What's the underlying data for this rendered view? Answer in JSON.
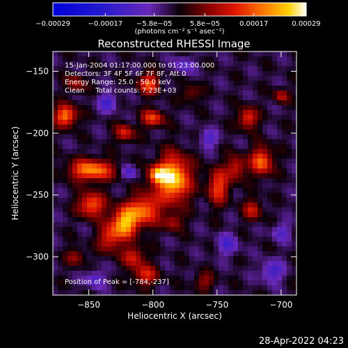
{
  "chart_data": {
    "type": "heatmap",
    "title": "Reconstructed RHESSI Image",
    "xlabel": "Heliocentric X (arcsec)",
    "ylabel": "Heliocentric Y (arcsec)",
    "xlim": [
      -878,
      -688
    ],
    "ylim": [
      -331,
      -134
    ],
    "x_ticks": [
      {
        "value": -850,
        "label": "−850"
      },
      {
        "value": -800,
        "label": "−800"
      },
      {
        "value": -750,
        "label": "−750"
      },
      {
        "value": -700,
        "label": "−700"
      }
    ],
    "y_ticks": [
      {
        "value": -150,
        "label": "−150"
      },
      {
        "value": -200,
        "label": "−200"
      },
      {
        "value": -250,
        "label": "−250"
      },
      {
        "value": -300,
        "label": "−300"
      }
    ],
    "colorbar": {
      "min": -0.00029,
      "max": 0.00029,
      "ticks": [
        {
          "value": -0.00029,
          "label": "−0.00029"
        },
        {
          "value": -0.00017,
          "label": "−0.00017"
        },
        {
          "value": -5.8e-05,
          "label": "−5.8e−05"
        },
        {
          "value": 5.8e-05,
          "label": "5.8e−05"
        },
        {
          "value": 0.00017,
          "label": "0.00017"
        },
        {
          "value": 0.00029,
          "label": "0.00029"
        }
      ],
      "units_label": "(photons cm⁻² s⁻¹ asec⁻²)"
    },
    "annotations": [
      "15-Jan-2004 01:17:00.000 to 01:23:00.000",
      "Detectors: 3F 4F 5F 6F 7F 8F, Att 0",
      "Energy Range: 25.0 - 50.0 keV",
      "Clean     Total counts: 7.23E+03",
      "Position of Peak = [-784,-237]"
    ],
    "peak": {
      "x": -784,
      "y": -237
    },
    "sources": [
      {
        "x": -784,
        "y": -237,
        "sx": 9,
        "sy": 13,
        "amp": 0.00029
      },
      {
        "x": -806,
        "y": -262,
        "sx": 8,
        "sy": 9,
        "amp": 0.0002
      },
      {
        "x": -822,
        "y": -272,
        "sx": 7,
        "sy": 9,
        "amp": 0.00026
      },
      {
        "x": -848,
        "y": -258,
        "sx": 7,
        "sy": 7,
        "amp": 0.0002
      },
      {
        "x": -848,
        "y": -230,
        "sx": 12,
        "sy": 6,
        "amp": 0.00023
      },
      {
        "x": -834,
        "y": -285,
        "sx": 6,
        "sy": 8,
        "amp": 0.00015
      },
      {
        "x": -815,
        "y": -300,
        "sx": 6,
        "sy": 6,
        "amp": 0.00014
      },
      {
        "x": -868,
        "y": -186,
        "sx": 6,
        "sy": 6,
        "amp": 0.00022
      },
      {
        "x": -822,
        "y": -200,
        "sx": 5,
        "sy": 5,
        "amp": 0.00015
      },
      {
        "x": -800,
        "y": -188,
        "sx": 6,
        "sy": 5,
        "amp": 0.00017
      },
      {
        "x": -803,
        "y": -160,
        "sx": 6,
        "sy": 6,
        "amp": 0.00017
      },
      {
        "x": -806,
        "y": -315,
        "sx": 7,
        "sy": 6,
        "amp": 0.00014
      },
      {
        "x": -749,
        "y": -243,
        "sx": 6,
        "sy": 10,
        "amp": 0.00017
      },
      {
        "x": -735,
        "y": -228,
        "sx": 5,
        "sy": 7,
        "amp": 0.00014
      },
      {
        "x": -726,
        "y": -188,
        "sx": 5,
        "sy": 6,
        "amp": 0.00017
      },
      {
        "x": -715,
        "y": -223,
        "sx": 6,
        "sy": 8,
        "amp": 0.0002
      },
      {
        "x": -722,
        "y": -262,
        "sx": 5,
        "sy": 6,
        "amp": 0.00013
      },
      {
        "x": -797,
        "y": -234,
        "sx": 5,
        "sy": 5,
        "amp": 0.0002
      },
      {
        "x": -784,
        "y": -272,
        "sx": 5,
        "sy": 5,
        "amp": 0.00011
      },
      {
        "x": -860,
        "y": -160,
        "sx": 5,
        "sy": 5,
        "amp": 0.00011
      },
      {
        "x": -770,
        "y": -168,
        "sx": 5,
        "sy": 5,
        "amp": 9e-05
      },
      {
        "x": -860,
        "y": -300,
        "sx": 5,
        "sy": 5,
        "amp": 0.0001
      },
      {
        "x": -700,
        "y": -170,
        "sx": 4,
        "sy": 4,
        "amp": 0.00012
      },
      {
        "x": -760,
        "y": -320,
        "sx": 6,
        "sy": 5,
        "amp": 9e-05
      }
    ],
    "holes": [
      {
        "x": -835,
        "y": -175,
        "sx": 5,
        "sy": 5,
        "amp": 0.00012
      },
      {
        "x": -818,
        "y": -232,
        "sx": 4,
        "sy": 4,
        "amp": 0.00011
      },
      {
        "x": -757,
        "y": -205,
        "sx": 5,
        "sy": 5,
        "amp": 0.0001
      },
      {
        "x": -707,
        "y": -312,
        "sx": 6,
        "sy": 6,
        "amp": 0.00012
      },
      {
        "x": -845,
        "y": -318,
        "sx": 5,
        "sy": 5,
        "amp": 0.0001
      },
      {
        "x": -742,
        "y": -290,
        "sx": 6,
        "sy": 6,
        "amp": 0.0001
      },
      {
        "x": -776,
        "y": -145,
        "sx": 5,
        "sy": 5,
        "amp": 9e-05
      },
      {
        "x": -700,
        "y": -280,
        "sx": 5,
        "sy": 5,
        "amp": 9e-05
      }
    ],
    "background": -2e-05,
    "grid": false,
    "legend": "colorbar-top"
  },
  "footer": {
    "timestamp": "28-Apr-2022 04:23"
  }
}
